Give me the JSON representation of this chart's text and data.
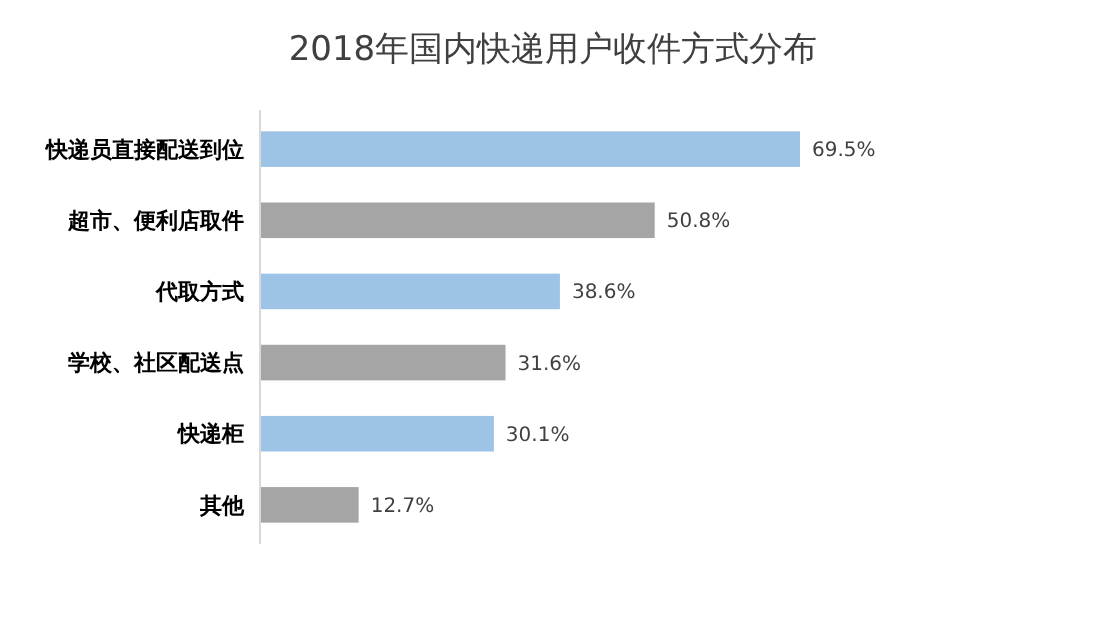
{
  "chart_data": {
    "type": "bar",
    "orientation": "horizontal",
    "title": "2018年国内快递用户收件方式分布",
    "categories": [
      "快递员直接配送到位",
      "超市、便利店取件",
      "代取方式",
      "学校、社区配送点",
      "快递柜",
      "其他"
    ],
    "values": [
      69.5,
      50.8,
      38.6,
      31.6,
      30.1,
      12.7
    ],
    "colors": [
      "#9dc3e6",
      "#a5a5a5",
      "#9dc3e6",
      "#a5a5a5",
      "#9dc3e6",
      "#a5a5a5"
    ],
    "value_labels": [
      "69.5%",
      "50.8%",
      "38.6%",
      "31.6%",
      "30.1%",
      "12.7%"
    ]
  }
}
